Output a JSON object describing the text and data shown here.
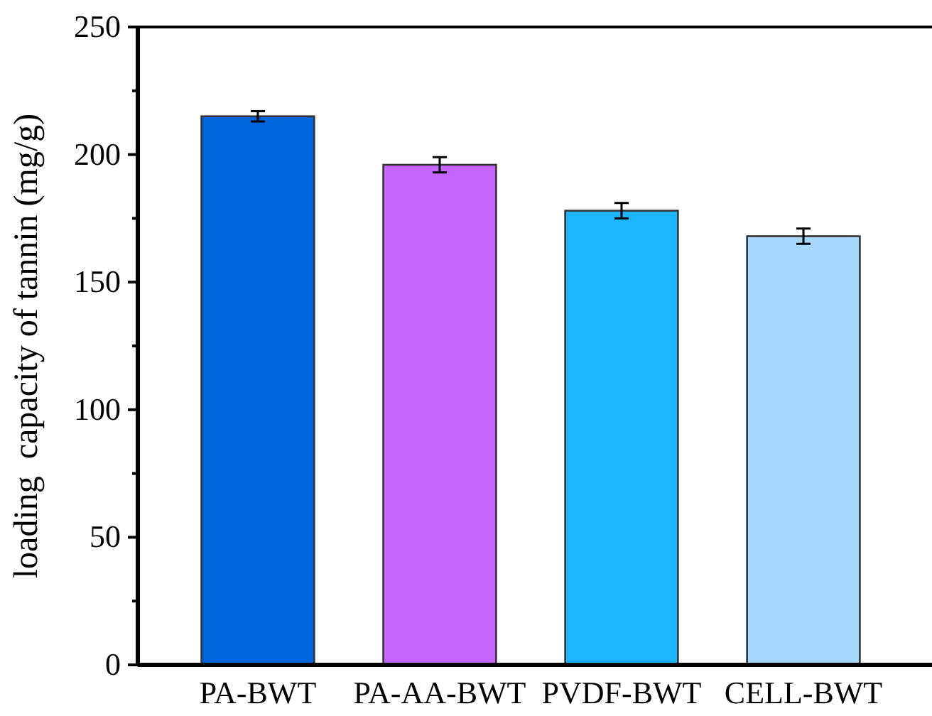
{
  "chart_data": {
    "type": "bar",
    "ylabel": "loading  capacity of tannin (mg/g)",
    "categories": [
      "PA-BWT",
      "PA-AA-BWT",
      "PVDF-BWT",
      "CELL-BWT"
    ],
    "values": [
      215,
      196,
      178,
      168
    ],
    "errors": [
      2,
      3,
      3,
      3
    ],
    "colors": [
      "#0066dd",
      "#c466ff",
      "#1eb4ff",
      "#a6d8ff"
    ],
    "ylim": [
      0,
      250
    ],
    "yticks": [
      0,
      {
        "value": 25,
        "label": null
      },
      50,
      {
        "value": 75,
        "label": null
      },
      100,
      {
        "value": 125,
        "label": null
      },
      150,
      {
        "value": 175,
        "label": null
      },
      200,
      {
        "value": 225,
        "label": null
      },
      250
    ],
    "grid": false
  }
}
